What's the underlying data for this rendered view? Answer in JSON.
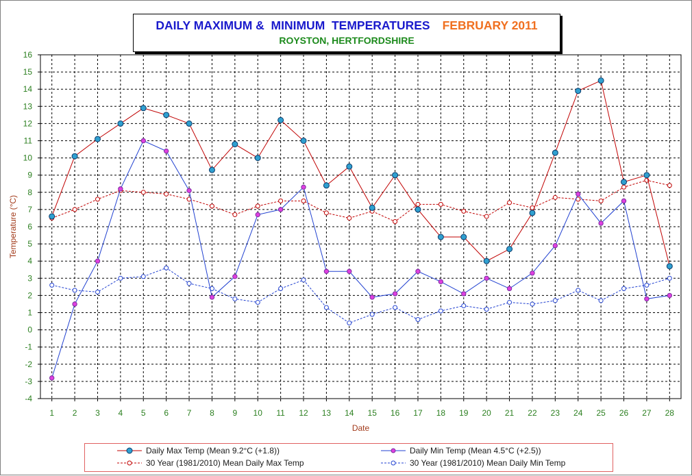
{
  "title": {
    "main": "DAILY MAXIMUM &  MINIMUM  TEMPERATURES",
    "month": "FEBRUARY 2011",
    "subtitle": "ROYSTON, HERTFORDSHIRE"
  },
  "colors": {
    "max": "#c00000",
    "min": "#2040d0",
    "max_marker_fill": "#30a0d0",
    "min_marker_fill": "#e040e0",
    "grid": "#000000",
    "tick_text": "#2b7f1f",
    "axis_title": "#a23a1a"
  },
  "chart_data": {
    "type": "line",
    "xlabel": "Date",
    "ylabel": "Temperature (°C)",
    "ylim": [
      -4,
      16
    ],
    "grid": true,
    "legend_position": "bottom",
    "x": [
      1,
      2,
      3,
      4,
      5,
      6,
      7,
      8,
      9,
      10,
      11,
      12,
      13,
      14,
      15,
      16,
      17,
      18,
      19,
      20,
      21,
      22,
      23,
      24,
      25,
      26,
      27,
      28
    ],
    "y_ticks": [
      -4,
      -3,
      -2,
      -1,
      0,
      1,
      2,
      3,
      4,
      5,
      6,
      7,
      8,
      9,
      10,
      11,
      12,
      13,
      14,
      15,
      16
    ],
    "series": [
      {
        "name": "Daily Max Temp (Mean 9.2°C (+1.8))",
        "style": "solid",
        "values": [
          6.6,
          10.1,
          11.1,
          12.0,
          12.9,
          12.5,
          12.0,
          9.3,
          10.8,
          10.0,
          12.2,
          11.0,
          8.4,
          9.5,
          7.1,
          9.0,
          7.0,
          5.4,
          5.4,
          4.0,
          4.7,
          6.8,
          10.3,
          13.9,
          14.5,
          8.6,
          9.0,
          3.7
        ]
      },
      {
        "name": "Daily Min Temp (Mean 4.5°C (+2.5))",
        "style": "solid",
        "values": [
          -2.8,
          1.5,
          4.0,
          8.2,
          11.0,
          10.4,
          8.1,
          1.9,
          3.1,
          6.7,
          7.0,
          8.3,
          3.4,
          3.4,
          1.9,
          2.1,
          3.4,
          2.8,
          2.1,
          3.0,
          2.4,
          3.3,
          4.9,
          7.9,
          6.2,
          7.5,
          1.8,
          2.0
        ]
      },
      {
        "name": "30 Year (1981/2010) Mean Daily Max Temp",
        "style": "dashed",
        "values": [
          6.5,
          7.0,
          7.6,
          8.1,
          8.0,
          7.9,
          7.6,
          7.2,
          6.7,
          7.2,
          7.5,
          7.5,
          6.8,
          6.5,
          6.9,
          6.3,
          7.3,
          7.3,
          6.9,
          6.6,
          7.4,
          7.1,
          7.7,
          7.6,
          7.5,
          8.3,
          8.7,
          8.4
        ]
      },
      {
        "name": "30 Year (1981/2010) Mean Daily Min Temp",
        "style": "dashed",
        "values": [
          2.6,
          2.3,
          2.2,
          3.0,
          3.1,
          3.6,
          2.7,
          2.4,
          1.8,
          1.6,
          2.4,
          2.9,
          1.3,
          0.4,
          0.9,
          1.3,
          0.6,
          1.1,
          1.4,
          1.2,
          1.6,
          1.5,
          1.7,
          2.3,
          1.7,
          2.4,
          2.6,
          3.0
        ]
      }
    ]
  }
}
